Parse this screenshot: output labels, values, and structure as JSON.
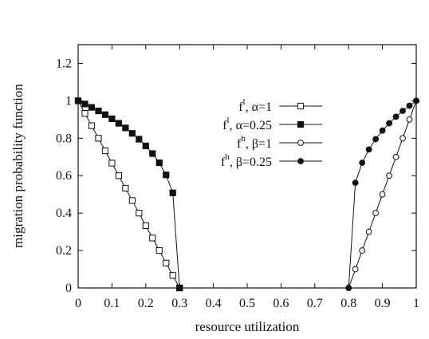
{
  "chart_data": {
    "type": "line",
    "xlabel": "resource utilization",
    "ylabel": "migration probability function",
    "xlim": [
      0,
      1
    ],
    "ylim": [
      0,
      1.3
    ],
    "xticks": [
      "0",
      "0.1",
      "0.2",
      "0.3",
      "0.4",
      "0.5",
      "0.6",
      "0.7",
      "0.8",
      "0.9",
      "1"
    ],
    "yticks": [
      "0",
      "0.2",
      "0.4",
      "0.6",
      "0.8",
      "1",
      "1.2"
    ],
    "legend_position": "center",
    "grid": false,
    "series": [
      {
        "name": "f^l, α=1",
        "legend": {
          "main": "f",
          "sup": "l",
          "rest": ", α=1"
        },
        "marker": "open-square",
        "x": [
          0,
          0.02,
          0.04,
          0.06,
          0.08,
          0.1,
          0.12,
          0.14,
          0.16,
          0.18,
          0.2,
          0.22,
          0.24,
          0.26,
          0.28,
          0.3
        ],
        "y": [
          1.0,
          0.933,
          0.867,
          0.8,
          0.733,
          0.667,
          0.6,
          0.533,
          0.467,
          0.4,
          0.333,
          0.267,
          0.2,
          0.133,
          0.067,
          0.0
        ]
      },
      {
        "name": "f^l, α=0.25",
        "legend": {
          "main": "f",
          "sup": "l",
          "rest": ", α=0.25"
        },
        "marker": "filled-square",
        "x": [
          0,
          0.02,
          0.04,
          0.06,
          0.08,
          0.1,
          0.12,
          0.14,
          0.16,
          0.18,
          0.2,
          0.22,
          0.24,
          0.26,
          0.28,
          0.3
        ],
        "y": [
          1.0,
          0.983,
          0.965,
          0.946,
          0.926,
          0.904,
          0.88,
          0.855,
          0.826,
          0.795,
          0.759,
          0.718,
          0.669,
          0.604,
          0.508,
          0.0
        ]
      },
      {
        "name": "f^h, β=1",
        "legend": {
          "main": "f",
          "sup": "h",
          "rest": ", β=1"
        },
        "marker": "open-circle",
        "x": [
          0.8,
          0.82,
          0.84,
          0.86,
          0.88,
          0.9,
          0.92,
          0.94,
          0.96,
          0.98,
          1.0
        ],
        "y": [
          0.0,
          0.1,
          0.2,
          0.3,
          0.4,
          0.5,
          0.6,
          0.7,
          0.8,
          0.9,
          1.0
        ]
      },
      {
        "name": "f^h, β=0.25",
        "legend": {
          "main": "f",
          "sup": "h",
          "rest": ", β=0.25"
        },
        "marker": "filled-circle",
        "x": [
          0.8,
          0.82,
          0.84,
          0.86,
          0.88,
          0.9,
          0.92,
          0.94,
          0.96,
          0.98,
          1.0
        ],
        "y": [
          0.0,
          0.562,
          0.669,
          0.74,
          0.795,
          0.841,
          0.88,
          0.915,
          0.946,
          0.974,
          1.0
        ]
      }
    ]
  }
}
